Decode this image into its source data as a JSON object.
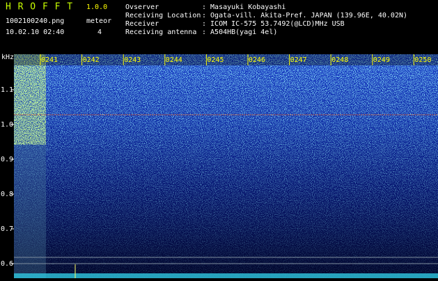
{
  "header": {
    "app": "H R O F F T",
    "version": "1.0.0",
    "filename": "1002100240.png",
    "meteor_label": "meteor",
    "meteor_count": "4",
    "datetime": "10.02.10 02:40"
  },
  "info": [
    {
      "label": "Ovserver",
      "value": ": Masayuki Kobayashi"
    },
    {
      "label": "Receiving Location",
      "value": ": Ogata-vill. Akita-Pref. JAPAN (139.96E, 40.02N)"
    },
    {
      "label": "Receiver",
      "value": ": ICOM IC-575 53.7492(@LCD)MHz USB"
    },
    {
      "label": "Receiving antenna",
      "value": ": A504HB(yagi 4el)"
    }
  ],
  "axis": {
    "unit": "kHz",
    "freq_ticks": [
      "1.1",
      "1.0",
      "0.9",
      "0.8",
      "0.7",
      "0.6"
    ],
    "time_ticks": [
      "0241",
      "0242",
      "0243",
      "0244",
      "0245",
      "0246",
      "0247",
      "0248",
      "0249",
      "0250"
    ]
  }
}
